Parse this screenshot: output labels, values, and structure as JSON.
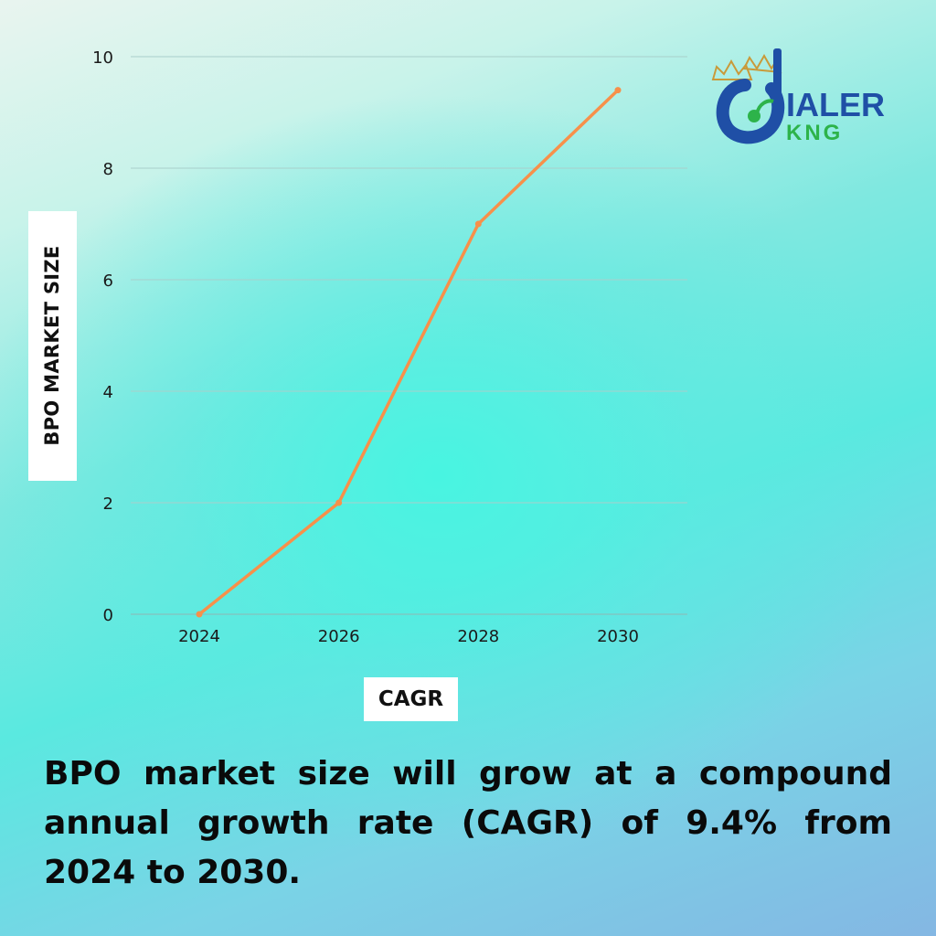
{
  "chart_data": {
    "type": "line",
    "x": [
      "2024",
      "2026",
      "2028",
      "2030"
    ],
    "values": [
      0,
      2,
      7,
      9.4
    ],
    "xlabel": "CAGR",
    "ylabel": "BPO MARKET SIZE",
    "ylim": [
      0,
      10
    ],
    "yticks": [
      0,
      2,
      4,
      6,
      8,
      10
    ],
    "grid": true,
    "line_color": "#f7904a"
  },
  "caption": "BPO market size will grow at a compound annual growth rate (CAGR) of 9.4% from 2024 to 2030.",
  "logo": {
    "text_top": "IALER",
    "text_bottom": "KNG",
    "brand_blue": "#1f4fa6",
    "brand_green": "#2db34a",
    "crown_gold": "#c99a3a"
  }
}
